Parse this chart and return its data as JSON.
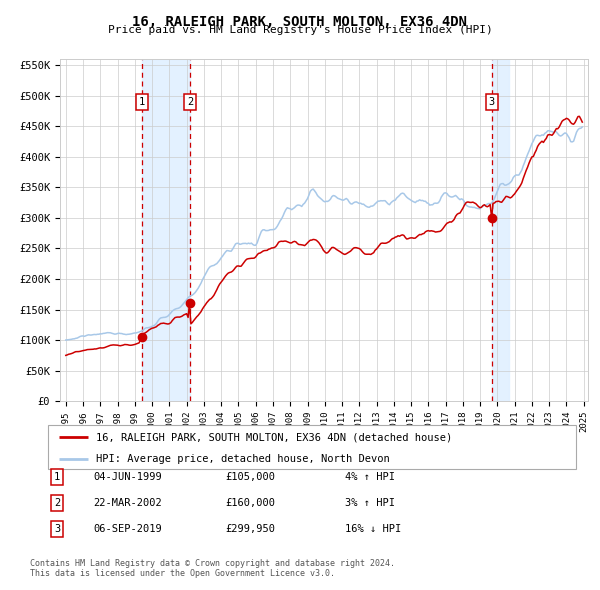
{
  "title": "16, RALEIGH PARK, SOUTH MOLTON, EX36 4DN",
  "subtitle": "Price paid vs. HM Land Registry's House Price Index (HPI)",
  "legend_property": "16, RALEIGH PARK, SOUTH MOLTON, EX36 4DN (detached house)",
  "legend_hpi": "HPI: Average price, detached house, North Devon",
  "ylim": [
    0,
    560000
  ],
  "yticks": [
    0,
    50000,
    100000,
    150000,
    200000,
    250000,
    300000,
    350000,
    400000,
    450000,
    500000,
    550000
  ],
  "ytick_labels": [
    "£0",
    "£50K",
    "£100K",
    "£150K",
    "£200K",
    "£250K",
    "£300K",
    "£350K",
    "£400K",
    "£450K",
    "£500K",
    "£550K"
  ],
  "sale1_year": 1999,
  "sale1_month": 6,
  "sale1_day": 4,
  "sale1_price": 105000,
  "sale2_year": 2002,
  "sale2_month": 3,
  "sale2_day": 22,
  "sale2_price": 160000,
  "sale3_year": 2019,
  "sale3_month": 9,
  "sale3_day": 6,
  "sale3_price": 299950,
  "property_color": "#cc0000",
  "hpi_color": "#a8c8e8",
  "shade_color": "#ddeeff",
  "grid_color": "#cccccc",
  "background_color": "#ffffff",
  "footnote1": "Contains HM Land Registry data © Crown copyright and database right 2024.",
  "footnote2": "This data is licensed under the Open Government Licence v3.0.",
  "table_rows": [
    [
      "1",
      "04-JUN-1999",
      "£105,000",
      "4% ↑ HPI"
    ],
    [
      "2",
      "22-MAR-2002",
      "£160,000",
      "3% ↑ HPI"
    ],
    [
      "3",
      "06-SEP-2019",
      "£299,950",
      "16% ↓ HPI"
    ]
  ]
}
